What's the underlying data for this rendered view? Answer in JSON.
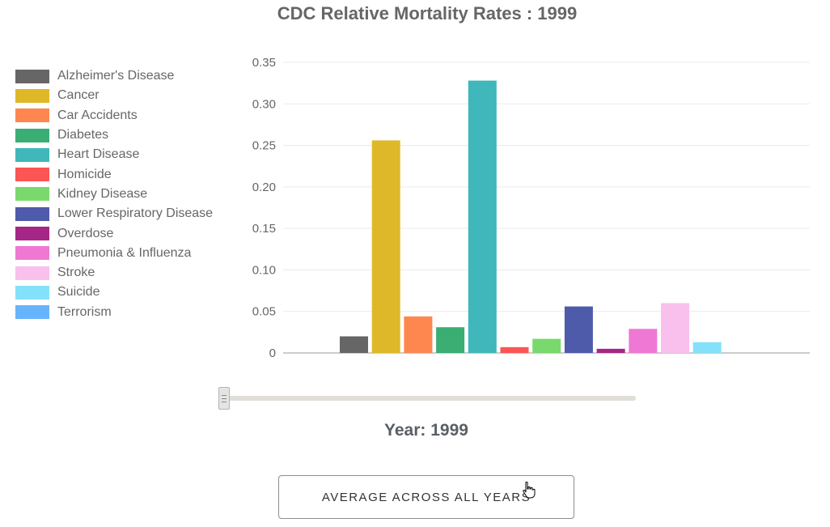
{
  "chart_data": {
    "type": "bar",
    "title": "CDC Relative Mortality Rates : 1999",
    "ylim": [
      0,
      0.35
    ],
    "yticks": [
      "0",
      "0.05",
      "0.10",
      "0.15",
      "0.20",
      "0.25",
      "0.30",
      "0.35"
    ],
    "grid": true,
    "legend_position": "left",
    "series": [
      {
        "name": "Alzheimer's Disease",
        "color": "#666666",
        "value": 0.02
      },
      {
        "name": "Cancer",
        "color": "#dfb829",
        "value": 0.256
      },
      {
        "name": "Car Accidents",
        "color": "#fe8750",
        "value": 0.044
      },
      {
        "name": "Diabetes",
        "color": "#3aae73",
        "value": 0.031
      },
      {
        "name": "Heart Disease",
        "color": "#3fb7bb",
        "value": 0.328
      },
      {
        "name": "Homicide",
        "color": "#fc5555",
        "value": 0.007
      },
      {
        "name": "Kidney Disease",
        "color": "#7ad96c",
        "value": 0.017
      },
      {
        "name": "Lower Respiratory Disease",
        "color": "#4e5aaa",
        "value": 0.056
      },
      {
        "name": "Overdose",
        "color": "#a52686",
        "value": 0.005
      },
      {
        "name": "Pneumonia & Influenza",
        "color": "#f078d5",
        "value": 0.029
      },
      {
        "name": "Stroke",
        "color": "#f9c0ee",
        "value": 0.06
      },
      {
        "name": "Suicide",
        "color": "#84e1fb",
        "value": 0.013
      },
      {
        "name": "Terrorism",
        "color": "#66b5fc",
        "value": 0.0
      }
    ]
  },
  "year_label": "Year: 1999",
  "year_value": 1999,
  "slider": {
    "position": 0
  },
  "button": {
    "label": "AVERAGE ACROSS ALL YEARS"
  }
}
